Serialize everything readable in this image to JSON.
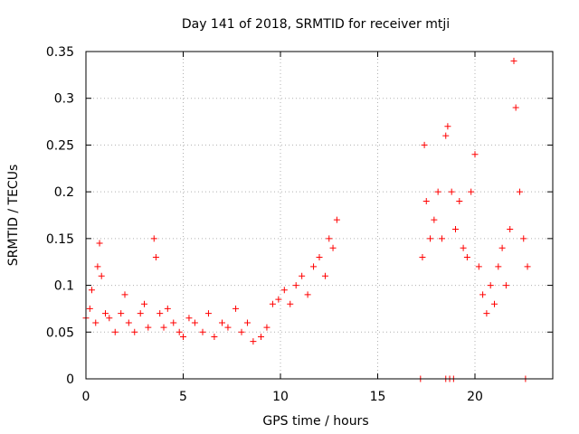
{
  "chart_data": {
    "type": "scatter",
    "title": "Day 141 of 2018, SRMTID for receiver mtji",
    "xlabel": "GPS time / hours",
    "ylabel": "SRMTID / TECUs",
    "xlim": [
      0,
      24
    ],
    "ylim": [
      0,
      0.35
    ],
    "grid": true,
    "marker": "+",
    "xticks": [
      0,
      5,
      10,
      15,
      20
    ],
    "xtick_labels": [
      "0",
      "5",
      "10",
      "15",
      "20"
    ],
    "yticks": [
      0,
      0.05,
      0.1,
      0.15,
      0.2,
      0.25,
      0.3,
      0.35
    ],
    "ytick_labels": [
      "0",
      "0.05",
      "0.1",
      "0.15",
      "0.2",
      "0.25",
      "0.3",
      "0.35"
    ],
    "colors": {
      "series": "#ff0000",
      "grid": "#b0b0b0",
      "axis": "#000000"
    },
    "series": [
      {
        "name": "SRMTID",
        "points": [
          [
            0.0,
            0.065
          ],
          [
            0.2,
            0.075
          ],
          [
            0.3,
            0.095
          ],
          [
            0.5,
            0.06
          ],
          [
            0.6,
            0.12
          ],
          [
            0.7,
            0.145
          ],
          [
            0.8,
            0.11
          ],
          [
            1.0,
            0.07
          ],
          [
            1.2,
            0.065
          ],
          [
            1.5,
            0.05
          ],
          [
            1.8,
            0.07
          ],
          [
            2.0,
            0.09
          ],
          [
            2.2,
            0.06
          ],
          [
            2.5,
            0.05
          ],
          [
            2.8,
            0.07
          ],
          [
            3.0,
            0.08
          ],
          [
            3.2,
            0.055
          ],
          [
            3.5,
            0.15
          ],
          [
            3.6,
            0.13
          ],
          [
            3.8,
            0.07
          ],
          [
            4.0,
            0.055
          ],
          [
            4.2,
            0.075
          ],
          [
            4.5,
            0.06
          ],
          [
            4.8,
            0.05
          ],
          [
            5.0,
            0.045
          ],
          [
            5.3,
            0.065
          ],
          [
            5.6,
            0.06
          ],
          [
            6.0,
            0.05
          ],
          [
            6.3,
            0.07
          ],
          [
            6.6,
            0.045
          ],
          [
            7.0,
            0.06
          ],
          [
            7.3,
            0.055
          ],
          [
            7.7,
            0.075
          ],
          [
            8.0,
            0.05
          ],
          [
            8.3,
            0.06
          ],
          [
            8.6,
            0.04
          ],
          [
            9.0,
            0.045
          ],
          [
            9.3,
            0.055
          ],
          [
            9.6,
            0.08
          ],
          [
            9.9,
            0.085
          ],
          [
            10.2,
            0.095
          ],
          [
            10.5,
            0.08
          ],
          [
            10.8,
            0.1
          ],
          [
            11.1,
            0.11
          ],
          [
            11.4,
            0.09
          ],
          [
            11.7,
            0.12
          ],
          [
            12.0,
            0.13
          ],
          [
            12.3,
            0.11
          ],
          [
            12.5,
            0.15
          ],
          [
            12.7,
            0.14
          ],
          [
            12.9,
            0.17
          ],
          [
            17.2,
            0.0
          ],
          [
            17.3,
            0.13
          ],
          [
            17.4,
            0.25
          ],
          [
            17.5,
            0.19
          ],
          [
            17.7,
            0.15
          ],
          [
            17.9,
            0.17
          ],
          [
            18.1,
            0.2
          ],
          [
            18.3,
            0.15
          ],
          [
            18.5,
            0.26
          ],
          [
            18.6,
            0.27
          ],
          [
            18.8,
            0.2
          ],
          [
            18.5,
            0.0
          ],
          [
            18.7,
            0.0
          ],
          [
            18.9,
            0.0
          ],
          [
            19.0,
            0.16
          ],
          [
            19.2,
            0.19
          ],
          [
            19.4,
            0.14
          ],
          [
            19.6,
            0.13
          ],
          [
            19.8,
            0.2
          ],
          [
            20.0,
            0.24
          ],
          [
            20.2,
            0.12
          ],
          [
            20.4,
            0.09
          ],
          [
            20.6,
            0.07
          ],
          [
            20.8,
            0.1
          ],
          [
            21.0,
            0.08
          ],
          [
            21.2,
            0.12
          ],
          [
            21.4,
            0.14
          ],
          [
            21.6,
            0.1
          ],
          [
            21.8,
            0.16
          ],
          [
            22.0,
            0.34
          ],
          [
            22.1,
            0.29
          ],
          [
            22.3,
            0.2
          ],
          [
            22.5,
            0.15
          ],
          [
            22.6,
            0.0
          ],
          [
            22.7,
            0.12
          ]
        ]
      }
    ]
  }
}
